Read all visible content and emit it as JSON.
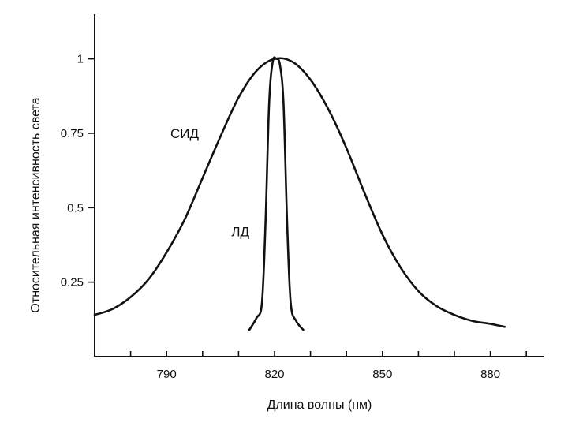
{
  "chart_data": {
    "type": "line",
    "xlabel": "Длина волны (нм)",
    "ylabel": "Относительная интенсивность света",
    "xlim": [
      770,
      895
    ],
    "ylim": [
      0,
      1.15
    ],
    "x_ticks": [
      790,
      820,
      850,
      880
    ],
    "x_minor_ticks": [
      780,
      790,
      800,
      810,
      820,
      830,
      840,
      850,
      860,
      870,
      880,
      890
    ],
    "y_ticks": [
      {
        "value": 0.25,
        "label": "0.25"
      },
      {
        "value": 0.5,
        "label": "0.5"
      },
      {
        "value": 0.75,
        "label": "0.75"
      },
      {
        "value": 1,
        "label": "1"
      }
    ],
    "grid": false,
    "series": [
      {
        "name": "СИД",
        "x": [
          770,
          775,
          780,
          785,
          790,
          795,
          800,
          805,
          810,
          815,
          820,
          825,
          830,
          835,
          840,
          845,
          850,
          855,
          860,
          865,
          870,
          875,
          880,
          884
        ],
        "y": [
          0.14,
          0.16,
          0.2,
          0.26,
          0.35,
          0.46,
          0.6,
          0.74,
          0.87,
          0.96,
          1.0,
          0.99,
          0.93,
          0.83,
          0.7,
          0.55,
          0.41,
          0.3,
          0.22,
          0.17,
          0.14,
          0.12,
          0.11,
          0.1
        ]
      },
      {
        "name": "ЛД",
        "x": [
          813,
          815,
          816.5,
          817.5,
          818.5,
          819.5,
          820.5,
          821.5,
          822.5,
          823.5,
          824.5,
          826,
          828
        ],
        "y": [
          0.09,
          0.13,
          0.18,
          0.45,
          0.85,
          0.99,
          1.0,
          0.98,
          0.85,
          0.45,
          0.18,
          0.12,
          0.09
        ]
      }
    ]
  }
}
